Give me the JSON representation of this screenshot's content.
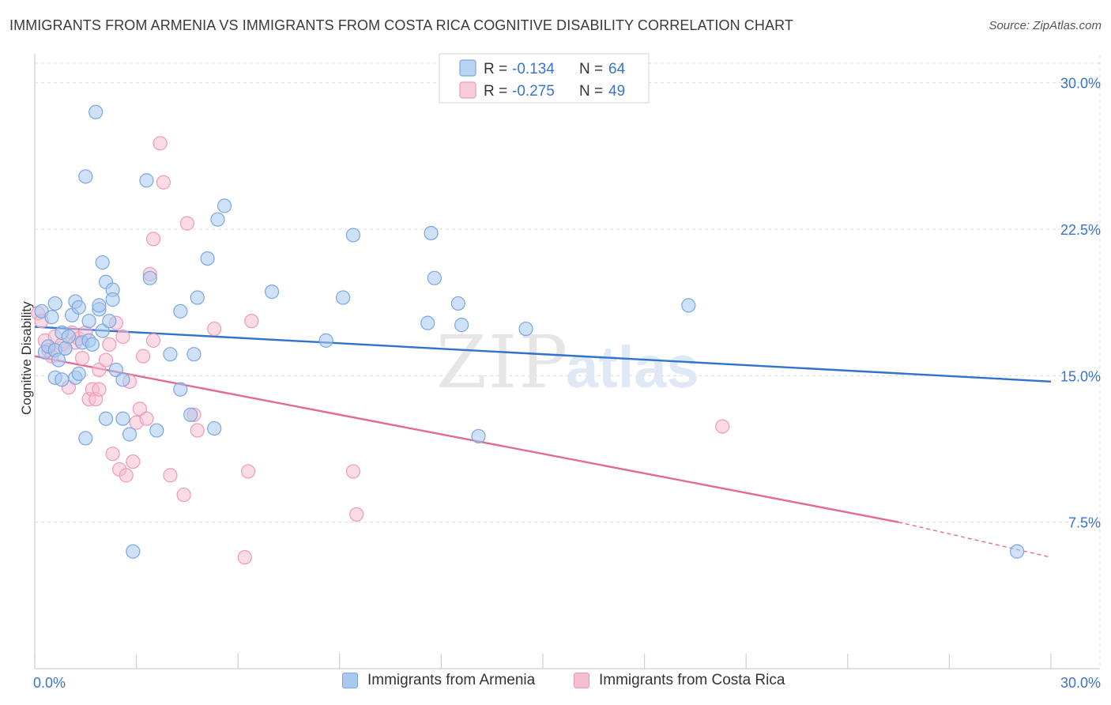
{
  "header": {
    "title": "IMMIGRANTS FROM ARMENIA VS IMMIGRANTS FROM COSTA RICA COGNITIVE DISABILITY CORRELATION CHART",
    "source": "Source: ZipAtlas.com"
  },
  "watermark": {
    "zip": "ZIP",
    "atlas": "atlas"
  },
  "colors": {
    "armenia_fill": "#a8c8f0",
    "armenia_stroke": "#7aa7e0",
    "armenia_line": "#2f73cc",
    "costarica_fill": "#f6bed1",
    "costarica_stroke": "#ee9ab7",
    "costarica_line": "#e36a97",
    "value_text": "#3a74c8"
  },
  "chart_data": {
    "type": "scatter",
    "title": "IMMIGRANTS FROM ARMENIA VS IMMIGRANTS FROM COSTA RICA COGNITIVE DISABILITY CORRELATION CHART",
    "xlabel": "",
    "ylabel": "Cognitive Disability",
    "xlim": [
      0,
      30
    ],
    "ylim": [
      0,
      31
    ],
    "y_ticks": [
      7.5,
      15.0,
      22.5,
      30.0
    ],
    "y_tick_labels": [
      "7.5%",
      "15.0%",
      "22.5%",
      "30.0%"
    ],
    "x_tick_labels": [
      "0.0%",
      "30.0%"
    ],
    "grid": true,
    "legend_position": "top-center",
    "stats": [
      {
        "series": "Immigrants from Armenia",
        "r_label": "R =",
        "r": "-0.134",
        "n_label": "N =",
        "n": "64"
      },
      {
        "series": "Immigrants from Costa Rica",
        "r_label": "R =",
        "r": "-0.275",
        "n_label": "N =",
        "n": "49"
      }
    ],
    "series": [
      {
        "name": "Immigrants from Armenia",
        "points": [
          [
            0.2,
            18.3
          ],
          [
            0.3,
            16.2
          ],
          [
            0.4,
            16.5
          ],
          [
            0.5,
            18.0
          ],
          [
            0.6,
            14.9
          ],
          [
            0.6,
            16.3
          ],
          [
            0.6,
            18.7
          ],
          [
            0.7,
            15.8
          ],
          [
            0.8,
            17.2
          ],
          [
            0.8,
            14.8
          ],
          [
            0.9,
            16.4
          ],
          [
            1.0,
            17.0
          ],
          [
            1.1,
            18.1
          ],
          [
            1.2,
            14.9
          ],
          [
            1.2,
            18.8
          ],
          [
            1.3,
            15.1
          ],
          [
            1.3,
            18.5
          ],
          [
            1.4,
            16.7
          ],
          [
            1.5,
            25.2
          ],
          [
            1.5,
            11.8
          ],
          [
            1.6,
            16.8
          ],
          [
            1.6,
            17.8
          ],
          [
            1.7,
            16.6
          ],
          [
            1.8,
            28.5
          ],
          [
            1.9,
            18.4
          ],
          [
            1.9,
            18.6
          ],
          [
            2.0,
            20.8
          ],
          [
            2.0,
            17.3
          ],
          [
            2.1,
            19.8
          ],
          [
            2.1,
            12.8
          ],
          [
            2.2,
            17.8
          ],
          [
            2.3,
            19.4
          ],
          [
            2.3,
            18.9
          ],
          [
            2.4,
            15.3
          ],
          [
            2.6,
            14.8
          ],
          [
            2.6,
            12.8
          ],
          [
            2.8,
            12.0
          ],
          [
            2.9,
            6.0
          ],
          [
            3.3,
            25.0
          ],
          [
            3.4,
            20.0
          ],
          [
            3.6,
            12.2
          ],
          [
            4.0,
            16.1
          ],
          [
            4.3,
            18.3
          ],
          [
            4.3,
            14.3
          ],
          [
            4.6,
            13.0
          ],
          [
            4.7,
            16.1
          ],
          [
            4.8,
            19.0
          ],
          [
            5.1,
            21.0
          ],
          [
            5.3,
            12.3
          ],
          [
            5.4,
            23.0
          ],
          [
            5.6,
            23.7
          ],
          [
            7.0,
            19.3
          ],
          [
            8.6,
            16.8
          ],
          [
            9.1,
            19.0
          ],
          [
            9.4,
            22.2
          ],
          [
            11.6,
            17.7
          ],
          [
            11.7,
            22.3
          ],
          [
            11.8,
            20.0
          ],
          [
            12.5,
            18.7
          ],
          [
            12.6,
            17.6
          ],
          [
            13.1,
            11.9
          ],
          [
            14.5,
            17.4
          ],
          [
            19.3,
            18.6
          ],
          [
            29.0,
            6.0
          ]
        ],
        "trend": {
          "x_start": 0,
          "y_start": 17.5,
          "x_end": 30,
          "y_end": 14.7
        }
      },
      {
        "name": "Immigrants from Costa Rica",
        "points": [
          [
            0.1,
            18.2
          ],
          [
            0.2,
            17.8
          ],
          [
            0.3,
            16.8
          ],
          [
            0.4,
            16.3
          ],
          [
            0.5,
            16.0
          ],
          [
            0.6,
            17.0
          ],
          [
            0.8,
            16.6
          ],
          [
            0.9,
            16.4
          ],
          [
            1.0,
            14.4
          ],
          [
            1.1,
            17.2
          ],
          [
            1.2,
            16.7
          ],
          [
            1.3,
            16.9
          ],
          [
            1.4,
            15.9
          ],
          [
            1.5,
            17.2
          ],
          [
            1.6,
            13.8
          ],
          [
            1.7,
            14.3
          ],
          [
            1.8,
            13.8
          ],
          [
            1.9,
            14.3
          ],
          [
            1.9,
            15.3
          ],
          [
            2.1,
            15.8
          ],
          [
            2.2,
            16.6
          ],
          [
            2.3,
            11.0
          ],
          [
            2.4,
            17.7
          ],
          [
            2.5,
            10.2
          ],
          [
            2.6,
            17.0
          ],
          [
            2.7,
            9.9
          ],
          [
            2.8,
            14.7
          ],
          [
            2.9,
            10.6
          ],
          [
            3.0,
            12.6
          ],
          [
            3.1,
            13.3
          ],
          [
            3.2,
            16.0
          ],
          [
            3.3,
            12.8
          ],
          [
            3.4,
            20.2
          ],
          [
            3.5,
            22.0
          ],
          [
            3.5,
            16.8
          ],
          [
            3.7,
            26.9
          ],
          [
            3.8,
            24.9
          ],
          [
            4.0,
            9.9
          ],
          [
            4.4,
            8.9
          ],
          [
            4.5,
            22.8
          ],
          [
            4.7,
            13.0
          ],
          [
            4.8,
            12.2
          ],
          [
            5.3,
            17.4
          ],
          [
            6.2,
            5.7
          ],
          [
            6.3,
            10.1
          ],
          [
            6.4,
            17.8
          ],
          [
            9.4,
            10.1
          ],
          [
            9.5,
            7.9
          ],
          [
            20.3,
            12.4
          ]
        ],
        "trend": {
          "x_start": 0,
          "y_start": 16.0,
          "x_end": 25.5,
          "y_end": 7.5,
          "dash_x_end": 30,
          "dash_y_end": 5.7
        }
      }
    ]
  },
  "bottom_legend": [
    {
      "label": "Immigrants from Armenia"
    },
    {
      "label": "Immigrants from Costa Rica"
    }
  ]
}
